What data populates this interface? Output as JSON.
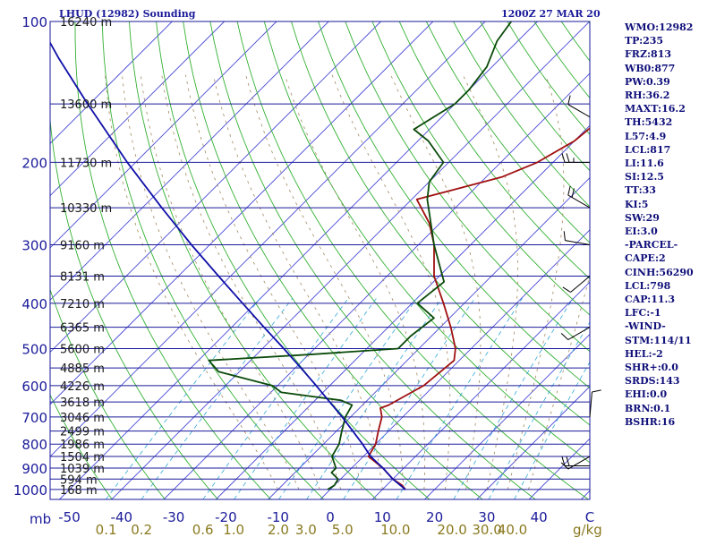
{
  "header": {
    "title": "LHUD (12982) Sounding",
    "datetime": "1200Z 27 MAR 20"
  },
  "indices": [
    "WMO:12982",
    "TP:235",
    "FRZ:813",
    "WB0:877",
    "PW:0.39",
    "RH:36.2",
    "MAXT:16.2",
    "TH:5432",
    "L57:4.9",
    "LCL:817",
    "LI:11.6",
    "SI:12.5",
    "TT:33",
    "KI:5",
    "SW:29",
    "EI:3.0",
    "-PARCEL-",
    "CAPE:2",
    "CINH:56290",
    "LCL:798",
    "CAP:11.3",
    "LFC:-1",
    "-WIND-",
    "STM:114/11",
    "HEL:-2",
    "SHR+:0.0",
    "SRDS:143",
    "EHI:0.0",
    "BRN:0.1",
    "BSHR:16"
  ],
  "colors": {
    "isobar": "#1a1a9a",
    "isotherm": "#4a4ad8",
    "dry_adiabat": "#33b033",
    "moist_adiabat": "#a08a60",
    "mixing_ratio": "#33a8d8",
    "temperature": "#a01010",
    "dewpoint": "#0a4a0a",
    "parcel": "#1010a8",
    "label_pressure": "#1a1a9a",
    "label_mixing": "#8a7a20"
  },
  "chart_data": {
    "type": "line",
    "diagram": "skew-T log-P",
    "units_label": "mb",
    "mixing_units_label": "g/kg",
    "pressure_ticks": [
      100,
      200,
      300,
      400,
      500,
      600,
      700,
      800,
      900,
      1000
    ],
    "temperature_ticks": [
      -50,
      -40,
      -30,
      -20,
      -10,
      0,
      10,
      20,
      30,
      40
    ],
    "temperature_axis_end_label": "C",
    "mixing_ratio_labels": [
      "0.1",
      "0.2",
      "0.6",
      "1.0",
      "2.0",
      "3.0",
      "5.0",
      "10.0",
      "20.0",
      "30.0",
      "40.0"
    ],
    "height_labels": [
      {
        "p": 100,
        "h": "16240 m"
      },
      {
        "p": 150,
        "h": "13600 m"
      },
      {
        "p": 200,
        "h": "11730 m"
      },
      {
        "p": 250,
        "h": "10330 m"
      },
      {
        "p": 300,
        "h": "9160 m"
      },
      {
        "p": 350,
        "h": "8131 m"
      },
      {
        "p": 400,
        "h": "7210 m"
      },
      {
        "p": 450,
        "h": "6365 m"
      },
      {
        "p": 500,
        "h": "5600 m"
      },
      {
        "p": 550,
        "h": "4885 m"
      },
      {
        "p": 600,
        "h": "4226 m"
      },
      {
        "p": 650,
        "h": "3618 m"
      },
      {
        "p": 700,
        "h": "3046 m"
      },
      {
        "p": 750,
        "h": "2499 m"
      },
      {
        "p": 800,
        "h": "1986 m"
      },
      {
        "p": 850,
        "h": "1504 m"
      },
      {
        "p": 900,
        "h": "1039 m"
      },
      {
        "p": 950,
        "h": "594 m"
      },
      {
        "p": 1000,
        "h": "168 m"
      }
    ],
    "series": [
      {
        "key": "temperature",
        "points": [
          [
            1000,
            14.4
          ],
          [
            980,
            13
          ],
          [
            950,
            10
          ],
          [
            900,
            6
          ],
          [
            850,
            1
          ],
          [
            800,
            0
          ],
          [
            750,
            -2
          ],
          [
            700,
            -4
          ],
          [
            670,
            -6
          ],
          [
            660,
            -5
          ],
          [
            600,
            -2
          ],
          [
            530,
            -1
          ],
          [
            500,
            -3
          ],
          [
            450,
            -8
          ],
          [
            400,
            -14
          ],
          [
            350,
            -21
          ],
          [
            300,
            -27
          ],
          [
            270,
            -32
          ],
          [
            240,
            -39
          ],
          [
            215,
            -27
          ],
          [
            200,
            -23
          ],
          [
            180,
            -20
          ],
          [
            160,
            -19
          ],
          [
            150,
            -19
          ],
          [
            130,
            -19
          ],
          [
            120,
            -18
          ],
          [
            108,
            -16
          ],
          [
            100,
            -17
          ]
        ]
      },
      {
        "key": "dewpoint",
        "points": [
          [
            1000,
            -0.5
          ],
          [
            980,
            0
          ],
          [
            950,
            -0.5
          ],
          [
            920,
            -3
          ],
          [
            900,
            -3
          ],
          [
            850,
            -6
          ],
          [
            800,
            -7
          ],
          [
            750,
            -9
          ],
          [
            700,
            -11
          ],
          [
            660,
            -12
          ],
          [
            645,
            -15
          ],
          [
            620,
            -28
          ],
          [
            600,
            -31
          ],
          [
            560,
            -44
          ],
          [
            530,
            -48
          ],
          [
            515,
            -30
          ],
          [
            500,
            -14
          ],
          [
            470,
            -14
          ],
          [
            430,
            -13
          ],
          [
            400,
            -19
          ],
          [
            360,
            -18
          ],
          [
            300,
            -27
          ],
          [
            240,
            -37
          ],
          [
            220,
            -40
          ],
          [
            200,
            -41
          ],
          [
            180,
            -48
          ],
          [
            170,
            -53
          ],
          [
            150,
            -50
          ],
          [
            140,
            -50
          ],
          [
            125,
            -51
          ],
          [
            110,
            -54
          ],
          [
            100,
            -55
          ]
        ]
      },
      {
        "key": "parcel",
        "points": [
          [
            1000,
            14.4
          ],
          [
            950,
            10
          ],
          [
            900,
            6
          ],
          [
            850,
            1.4
          ],
          [
            800,
            -2.5
          ],
          [
            750,
            -6.9
          ],
          [
            700,
            -11.6
          ],
          [
            650,
            -16.9
          ],
          [
            600,
            -22.6
          ],
          [
            550,
            -28.9
          ],
          [
            500,
            -35.9
          ],
          [
            450,
            -43.8
          ],
          [
            400,
            -52.5
          ],
          [
            350,
            -62.3
          ],
          [
            300,
            -73.5
          ],
          [
            250,
            -86.3
          ],
          [
            200,
            -101.6
          ],
          [
            150,
            -120.4
          ],
          [
            120,
            -134.6
          ],
          [
            105,
            -142.7
          ],
          [
            100,
            -145.6
          ]
        ]
      }
    ],
    "wind_barbs": [
      {
        "p": 160,
        "dir": 300,
        "kt": 10
      },
      {
        "p": 200,
        "dir": 270,
        "kt": 25
      },
      {
        "p": 250,
        "dir": 300,
        "kt": 20
      },
      {
        "p": 300,
        "dir": 280,
        "kt": 10
      },
      {
        "p": 350,
        "dir": 230,
        "kt": 10
      },
      {
        "p": 450,
        "dir": 240,
        "kt": 10
      },
      {
        "p": 700,
        "dir": 5,
        "kt": 10
      },
      {
        "p": 850,
        "dir": 240,
        "kt": 10
      },
      {
        "p": 890,
        "dir": 270,
        "kt": 20
      }
    ]
  }
}
